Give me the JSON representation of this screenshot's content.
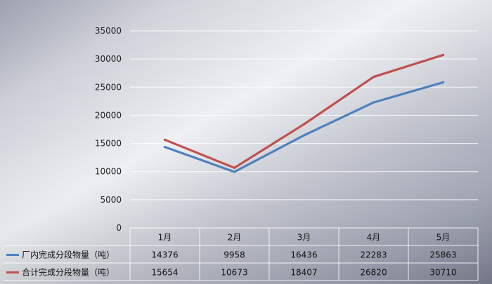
{
  "chart_data": {
    "type": "line",
    "title": "",
    "xlabel": "",
    "ylabel": "",
    "categories": [
      "1月",
      "2月",
      "3月",
      "4月",
      "5月"
    ],
    "ylim": [
      0,
      35000
    ],
    "yticks": [
      0,
      5000,
      10000,
      15000,
      20000,
      25000,
      30000,
      35000
    ],
    "grid": true,
    "legend": "bottom-left data table",
    "series": [
      {
        "name": "厂内完成分段物量（吨）",
        "values": [
          14376,
          9958,
          16436,
          22283,
          25863
        ],
        "color": "#4f81bd"
      },
      {
        "name": "合计完成分段物量（吨）",
        "values": [
          15654,
          10673,
          18407,
          26820,
          30710
        ],
        "color": "#c0504d"
      }
    ]
  }
}
